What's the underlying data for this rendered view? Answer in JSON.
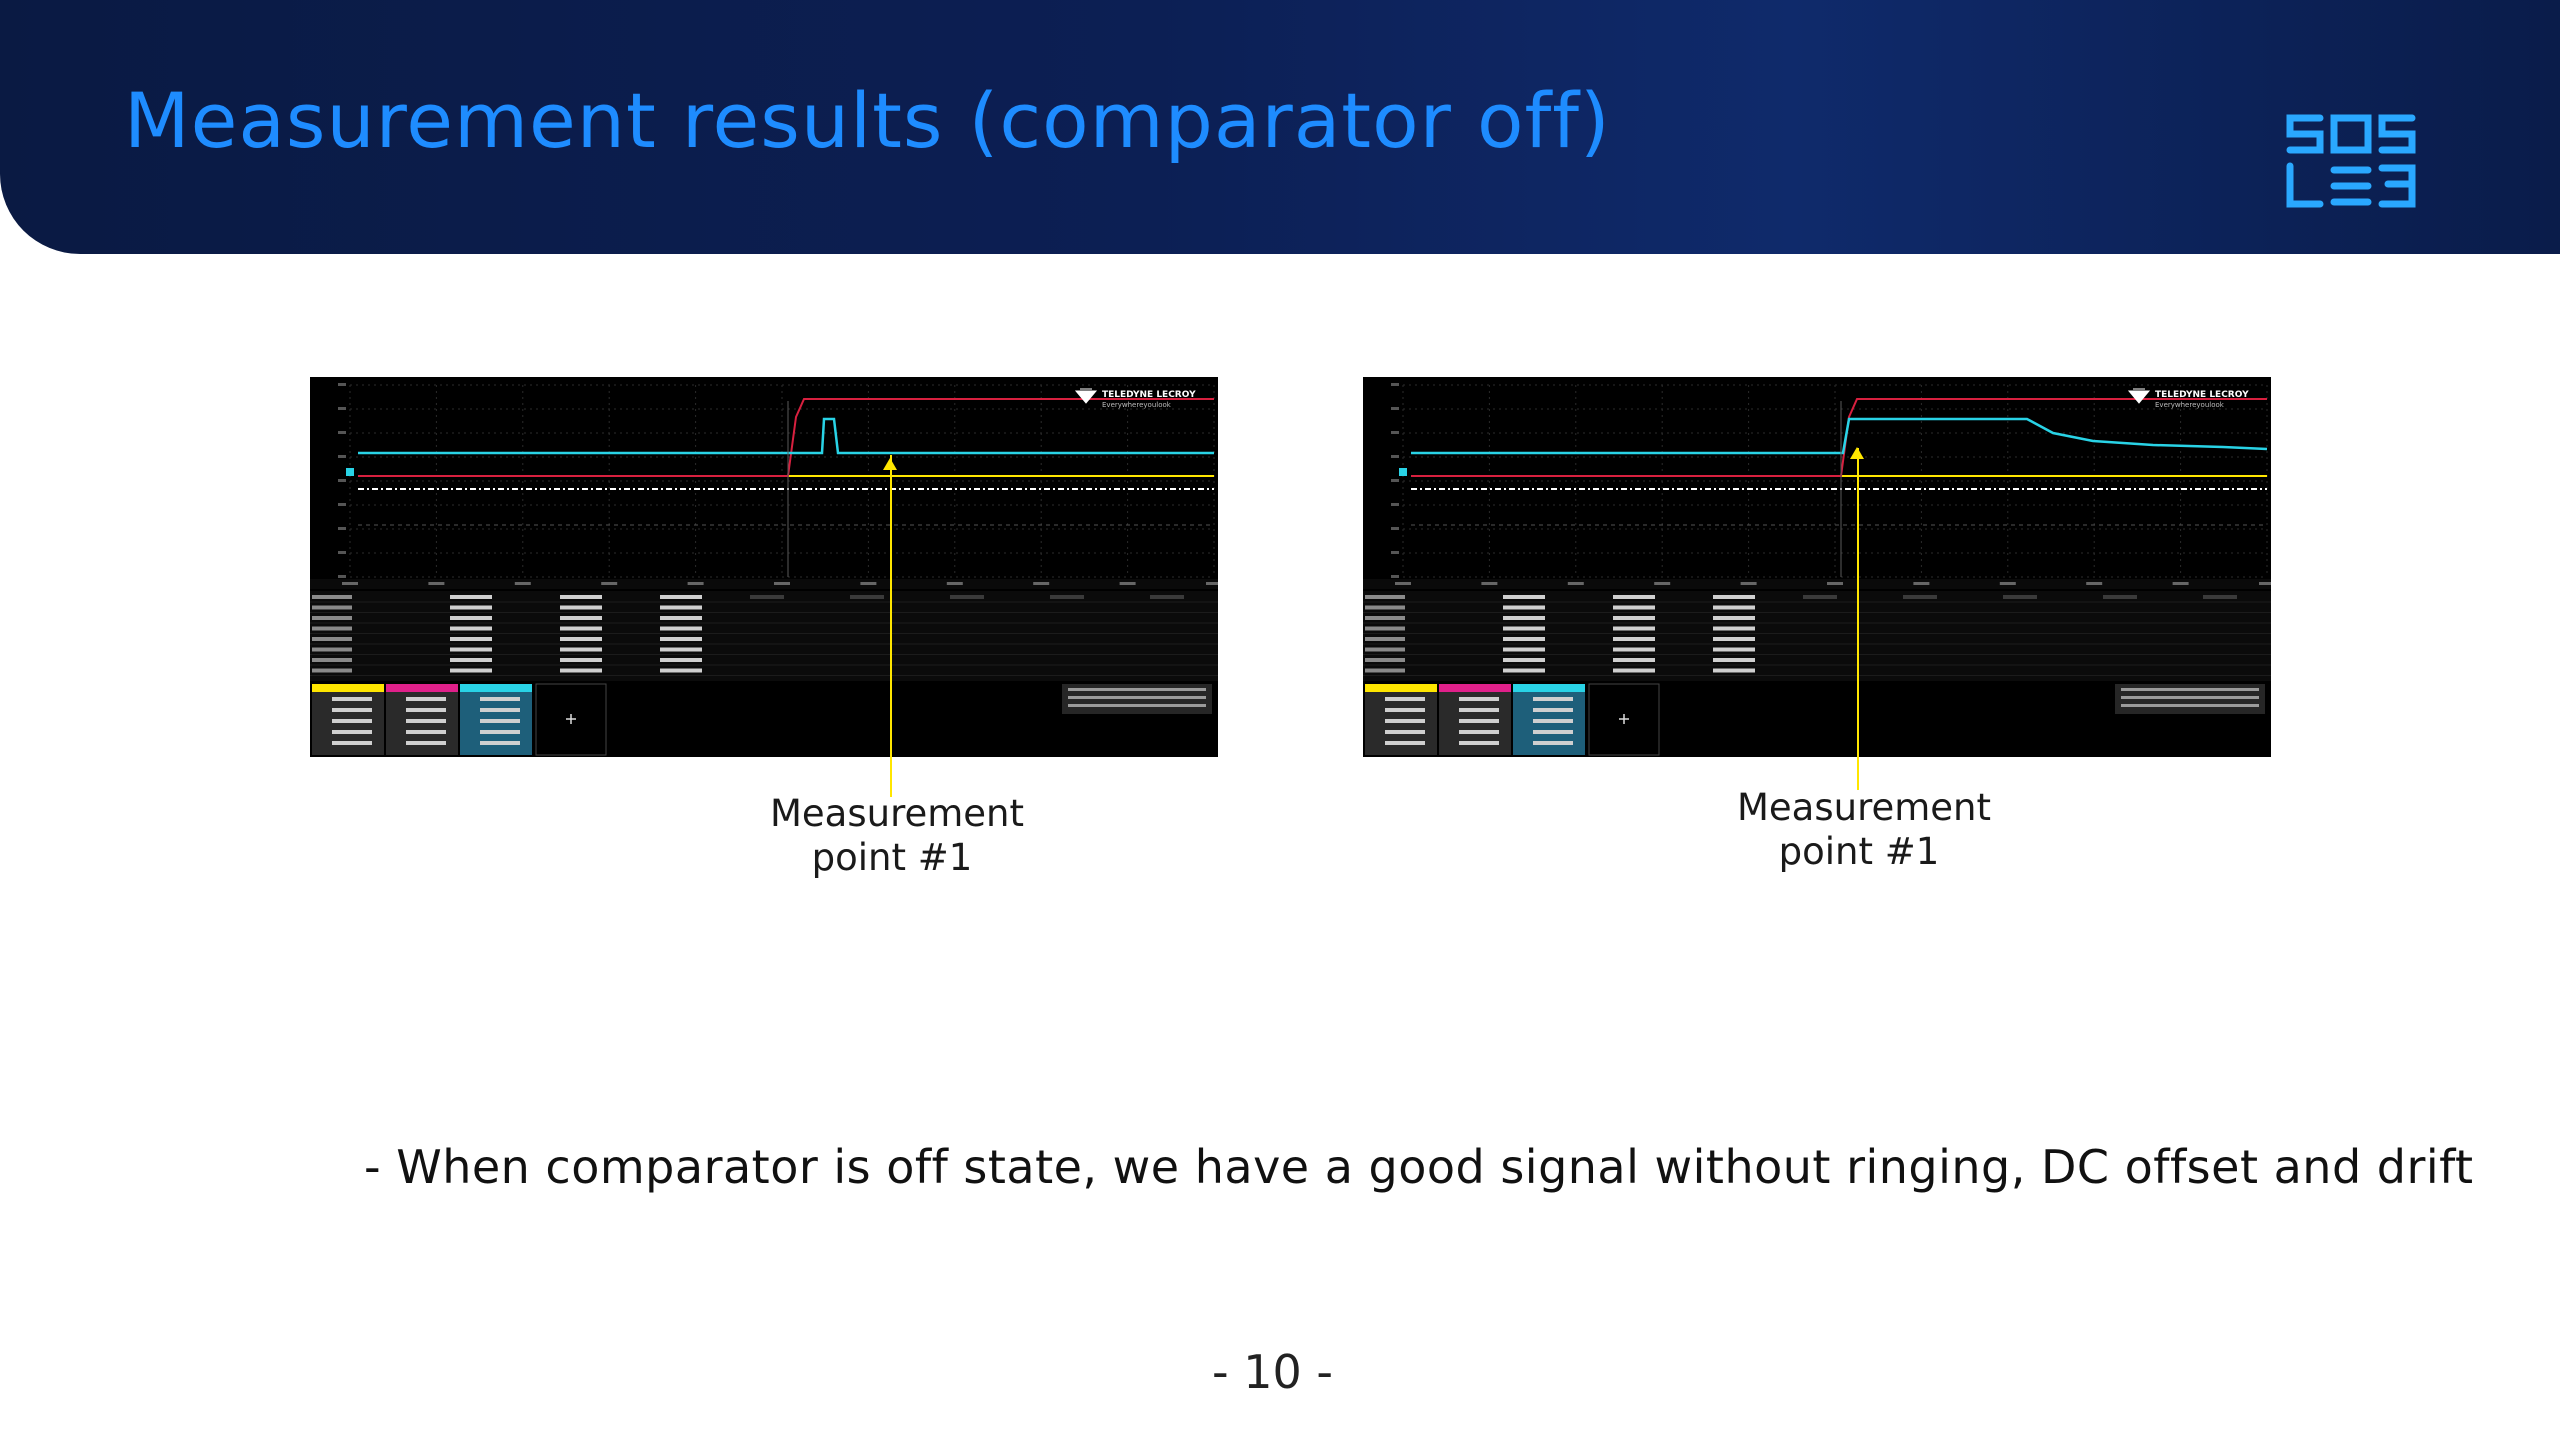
{
  "slide": {
    "title": "Measurement results (comparator off)",
    "bullet": "- When comparator is off state, we have a good signal without ringing, DC offset and drift",
    "page_number": "- 10 -"
  },
  "logo": {
    "name": "sos-lab-logo",
    "color": "#2aa8ff"
  },
  "scopes": [
    {
      "brand": "TELEDYNE LECROY",
      "tagline": "Everywhereyoulook",
      "callout": "Measurement\npoint #1"
    },
    {
      "brand": "TELEDYNE LECROY",
      "tagline": "Everywhereyoulook",
      "callout": "Measurement\npoint #1"
    }
  ],
  "colors": {
    "header_bg": "#0c1f54",
    "title": "#1e8cff",
    "trace_cyan": "#29d3e6",
    "trace_red": "#d8203f",
    "trace_yellow": "#ffe600",
    "callout": "#ffe600"
  }
}
